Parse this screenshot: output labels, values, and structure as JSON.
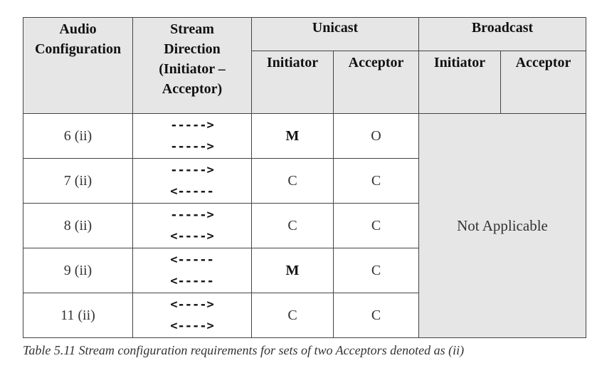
{
  "table": {
    "headers": {
      "audio_config": "Audio Configuration",
      "stream_direction_line1": "Stream",
      "stream_direction_line2": "Direction",
      "stream_direction_line3": "(Initiator –",
      "stream_direction_line4": "Acceptor)",
      "unicast": "Unicast",
      "broadcast": "Broadcast",
      "unicast_initiator": "Initiator",
      "unicast_acceptor": "Acceptor",
      "broadcast_initiator": "Initiator",
      "broadcast_acceptor": "Acceptor"
    },
    "rows": [
      {
        "config": "6 (ii)",
        "arrow1": "----->",
        "arrow2": "----->",
        "uni_init": "M",
        "uni_acc": "O"
      },
      {
        "config": "7 (ii)",
        "arrow1": "----->",
        "arrow2": "<-----",
        "uni_init": "C",
        "uni_acc": "C"
      },
      {
        "config": "8 (ii)",
        "arrow1": "----->",
        "arrow2": "<---->",
        "uni_init": "C",
        "uni_acc": "C"
      },
      {
        "config": "9 (ii)",
        "arrow1": "<-----",
        "arrow2": "<-----",
        "uni_init": "M",
        "uni_acc": "C"
      },
      {
        "config": "11 (ii)",
        "arrow1": "<---->",
        "arrow2": "<---->",
        "uni_init": "C",
        "uni_acc": "C"
      }
    ],
    "broadcast_value": "Not Applicable"
  },
  "caption": "Table 5.11  Stream configuration requirements for sets of two Acceptors denoted as (ii)"
}
